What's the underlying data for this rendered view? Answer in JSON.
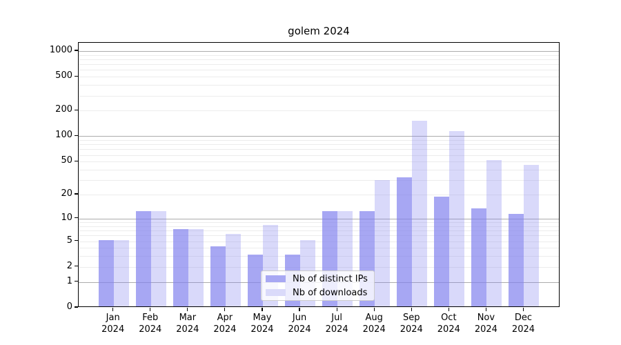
{
  "figure_title": "golem 2024",
  "chart_data": {
    "type": "bar",
    "title": "golem 2024",
    "categories": [
      "Jan 2024",
      "Feb 2024",
      "Mar 2024",
      "Apr 2024",
      "May 2024",
      "Jun 2024",
      "Jul 2024",
      "Aug 2024",
      "Sep 2024",
      "Oct 2024",
      "Nov 2024",
      "Dec 2024"
    ],
    "series": [
      {
        "name": "Nb of distinct IPs",
        "values": [
          5,
          12,
          7,
          4,
          3,
          3,
          12,
          12,
          31,
          18,
          13,
          11
        ],
        "color_rgb": "130,130,238",
        "alpha": 0.7,
        "legend_swatch": "#a8a8f3"
      },
      {
        "name": "Nb of downloads",
        "values": [
          5,
          12,
          7,
          6,
          8,
          5,
          12,
          29,
          146,
          111,
          50,
          44
        ],
        "color_rgb": "130,130,238",
        "alpha": 0.3,
        "legend_swatch": "#dadafa"
      }
    ],
    "xlabel": "",
    "ylabel": "",
    "yscale": "log10(1+x)",
    "ylim": [
      0,
      1250
    ],
    "ytick_labels": [
      0,
      1,
      2,
      5,
      10,
      20,
      50,
      100,
      200,
      500,
      1000
    ],
    "grid_major": [
      1,
      10,
      100,
      1000
    ],
    "grid_minor": [
      2,
      3,
      4,
      5,
      6,
      7,
      8,
      9,
      20,
      30,
      40,
      50,
      60,
      70,
      80,
      90,
      200,
      300,
      400,
      500,
      600,
      700,
      800,
      900
    ],
    "legend_position": "lower center inside axes",
    "bar_grouping": "paired side-by-side per month"
  },
  "colors": {
    "major_grid": "#ababab",
    "minor_grid": "#ececec",
    "axis": "#000000",
    "text": "#000000",
    "background": "#ffffff",
    "legend_border": "#cccccc"
  }
}
